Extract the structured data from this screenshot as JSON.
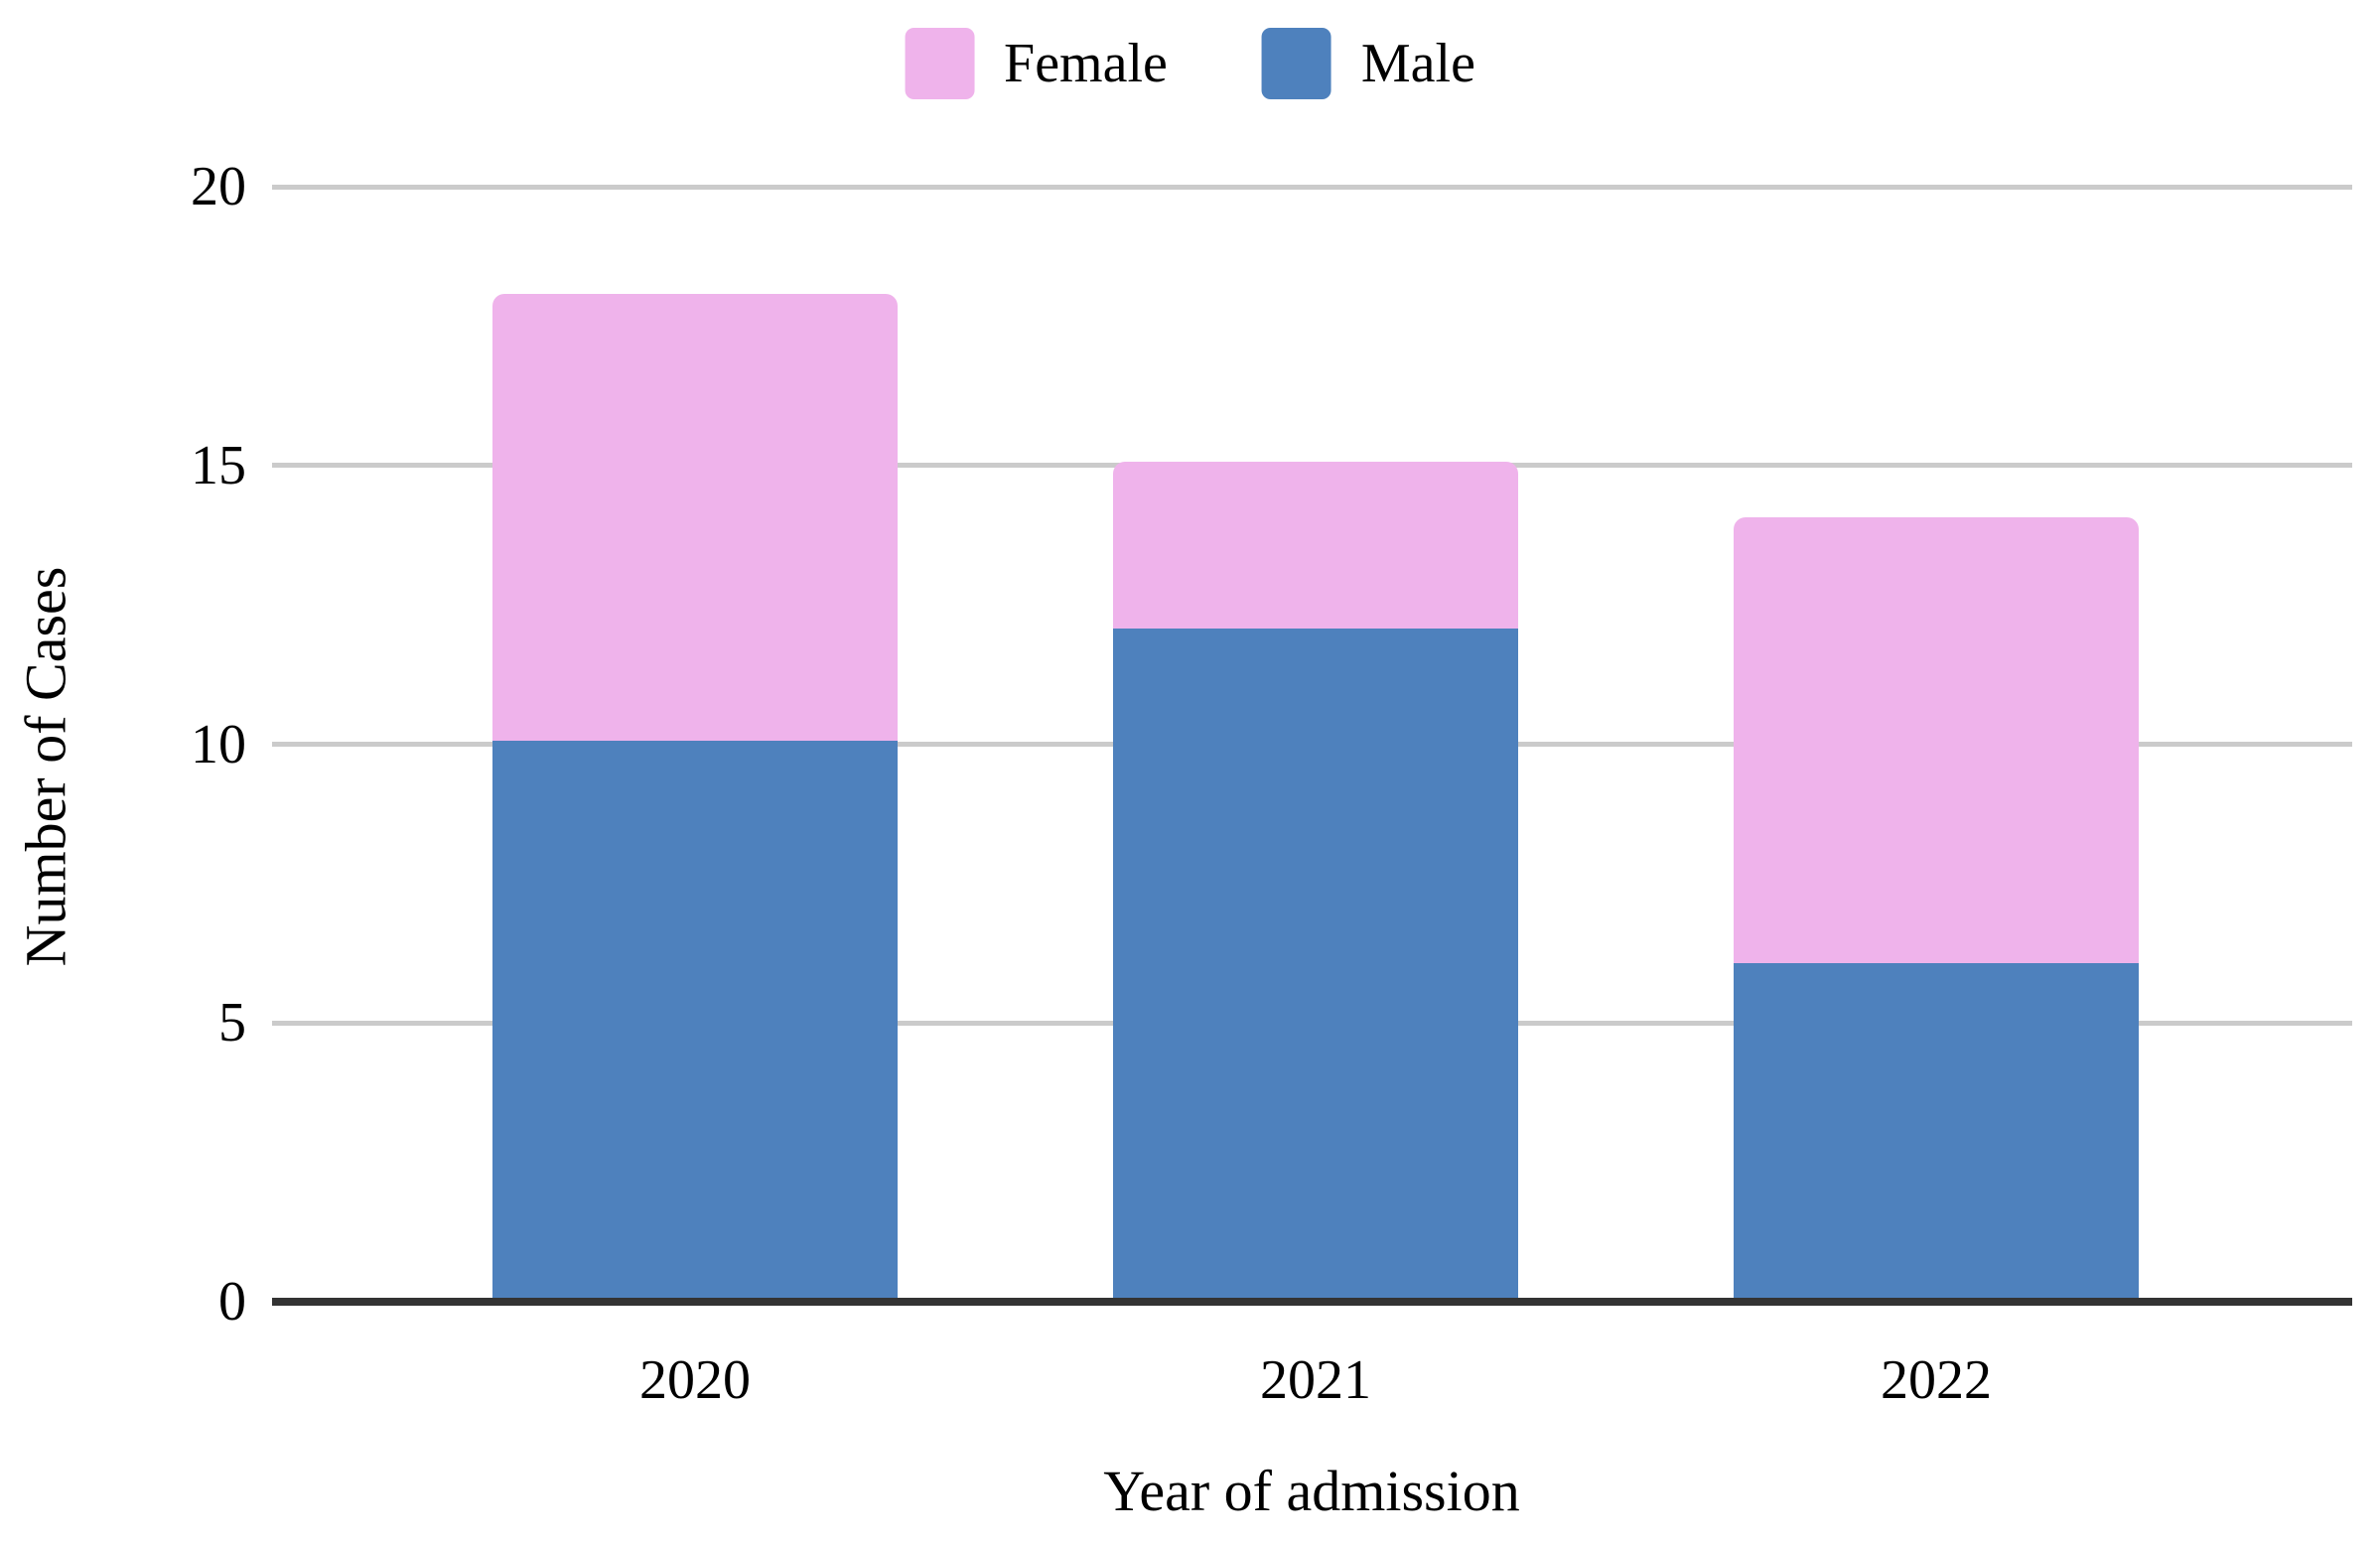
{
  "legend": {
    "items": [
      {
        "label": "Female",
        "color": "#EFB3EB"
      },
      {
        "label": "Male",
        "color": "#4E81BD"
      }
    ]
  },
  "chart_data": {
    "type": "bar",
    "stacked": true,
    "title": "",
    "xlabel": "Year of admission",
    "ylabel": "Number of Cases",
    "categories": [
      "2020",
      "2021",
      "2022"
    ],
    "series": [
      {
        "name": "Male",
        "color": "#4E81BD",
        "values": [
          10,
          12,
          6
        ]
      },
      {
        "name": "Female",
        "color": "#EFB3EB",
        "values": [
          8,
          3,
          8
        ]
      }
    ],
    "stack_totals": [
      18,
      15,
      14
    ],
    "ylim": [
      0,
      20
    ],
    "yticks": [
      0,
      5,
      10,
      15,
      20
    ],
    "grid": "horizontal",
    "legend_position": "top-center",
    "colors": {
      "background": "#FFFFFF",
      "gridline": "#CBCBCB",
      "axis_line": "#333333",
      "text": "#000000"
    }
  }
}
